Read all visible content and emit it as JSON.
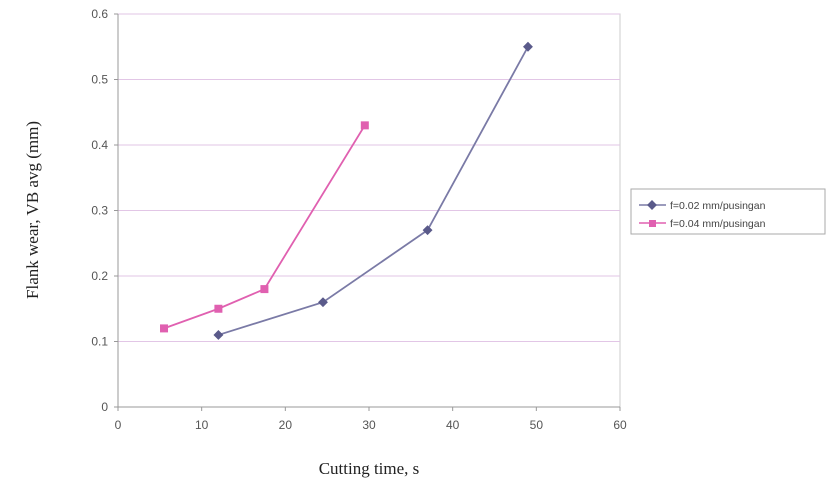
{
  "chart_data": {
    "type": "line",
    "title": "",
    "xlabel": "Cutting time, s",
    "ylabel": "Flank wear, VB avg (mm)",
    "xlim": [
      0,
      60
    ],
    "ylim": [
      0,
      0.6
    ],
    "x_ticks": [
      "0",
      "10",
      "20",
      "30",
      "40",
      "50",
      "60"
    ],
    "y_ticks": [
      "0",
      "0.1",
      "0.2",
      "0.3",
      "0.4",
      "0.5",
      "0.6"
    ],
    "grid": "horizontal",
    "legend_position": "right",
    "series": [
      {
        "name": "f=0.02 mm/pusingan",
        "color": "#7a7aa6",
        "marker": "diamond",
        "points": [
          [
            12,
            0.11
          ],
          [
            24.5,
            0.16
          ],
          [
            37,
            0.27
          ],
          [
            49,
            0.55
          ]
        ]
      },
      {
        "name": "f=0.04 mm/pusingan",
        "color": "#e060b0",
        "marker": "square",
        "points": [
          [
            5.5,
            0.12
          ],
          [
            12,
            0.15
          ],
          [
            17.5,
            0.18
          ],
          [
            29.5,
            0.43
          ]
        ]
      }
    ]
  }
}
